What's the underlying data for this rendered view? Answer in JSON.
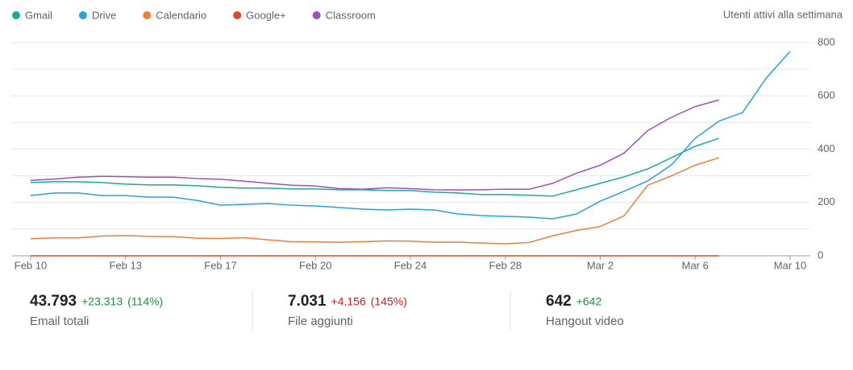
{
  "chart_data": {
    "type": "line",
    "y_label": "Utenti attivi alla settimana",
    "categories": [
      "Feb 10",
      null,
      null,
      null,
      "Feb 13",
      null,
      null,
      null,
      "Feb 17",
      null,
      null,
      null,
      "Feb 20",
      null,
      null,
      null,
      "Feb 24",
      null,
      null,
      null,
      "Feb 28",
      null,
      null,
      null,
      "Mar 2",
      null,
      null,
      null,
      "Mar 6",
      null,
      null,
      null,
      "Mar 10"
    ],
    "series": [
      {
        "name": "Gmail",
        "color": "#1aab9b",
        "values": [
          275,
          278,
          278,
          275,
          269,
          266,
          266,
          263,
          257,
          254,
          254,
          251,
          251,
          248,
          248,
          245,
          245,
          239,
          236,
          230,
          230,
          227,
          224,
          248,
          272,
          296,
          326,
          368,
          411,
          441,
          null,
          null,
          null
        ]
      },
      {
        "name": "Drive",
        "color": "#26a3db",
        "values": [
          226,
          236,
          236,
          226,
          226,
          220,
          220,
          208,
          190,
          193,
          196,
          190,
          187,
          181,
          175,
          172,
          175,
          172,
          157,
          151,
          148,
          145,
          139,
          157,
          205,
          242,
          281,
          341,
          441,
          505,
          538,
          668,
          767
        ]
      },
      {
        "name": "Calendario",
        "color": "#ef7e37",
        "values": [
          64,
          67,
          67,
          74,
          76,
          73,
          72,
          66,
          65,
          68,
          60,
          53,
          52,
          51,
          53,
          56,
          55,
          51,
          51,
          48,
          45,
          50,
          75,
          95,
          110,
          150,
          265,
          300,
          340,
          368,
          null,
          null,
          null
        ]
      },
      {
        "name": "Google+",
        "color": "#d84a23",
        "values": [
          0,
          0,
          0,
          0,
          0,
          0,
          0,
          0,
          0,
          0,
          0,
          0,
          0,
          0,
          0,
          0,
          0,
          0,
          0,
          0,
          0,
          0,
          0,
          0,
          0,
          0,
          0,
          0,
          0,
          0,
          null,
          null,
          null
        ]
      },
      {
        "name": "Classroom",
        "color": "#a04fbf",
        "values": [
          283,
          288,
          295,
          298,
          297,
          295,
          295,
          290,
          287,
          280,
          272,
          265,
          262,
          252,
          250,
          255,
          252,
          248,
          247,
          248,
          250,
          250,
          272,
          310,
          340,
          385,
          470,
          520,
          560,
          585,
          null,
          null,
          null
        ]
      }
    ],
    "ylim": [
      0,
      800
    ],
    "yticks": [
      0,
      200,
      400,
      600,
      800
    ],
    "minor_yticks": [
      100,
      300,
      500,
      700
    ],
    "grid": true,
    "legend": "top-left"
  },
  "stats": [
    {
      "value": "43.793",
      "change": "+23.313",
      "percent": "(114%)",
      "label": "Email totali",
      "change_color": "#1e8e3e"
    },
    {
      "value": "7.031",
      "change": "+4.156",
      "percent": "(145%)",
      "label": "File aggiunti",
      "change_color": "#c5221f"
    },
    {
      "value": "642",
      "change": "+642",
      "label": "Hangout video",
      "change_color": "#1e8e3e"
    }
  ]
}
